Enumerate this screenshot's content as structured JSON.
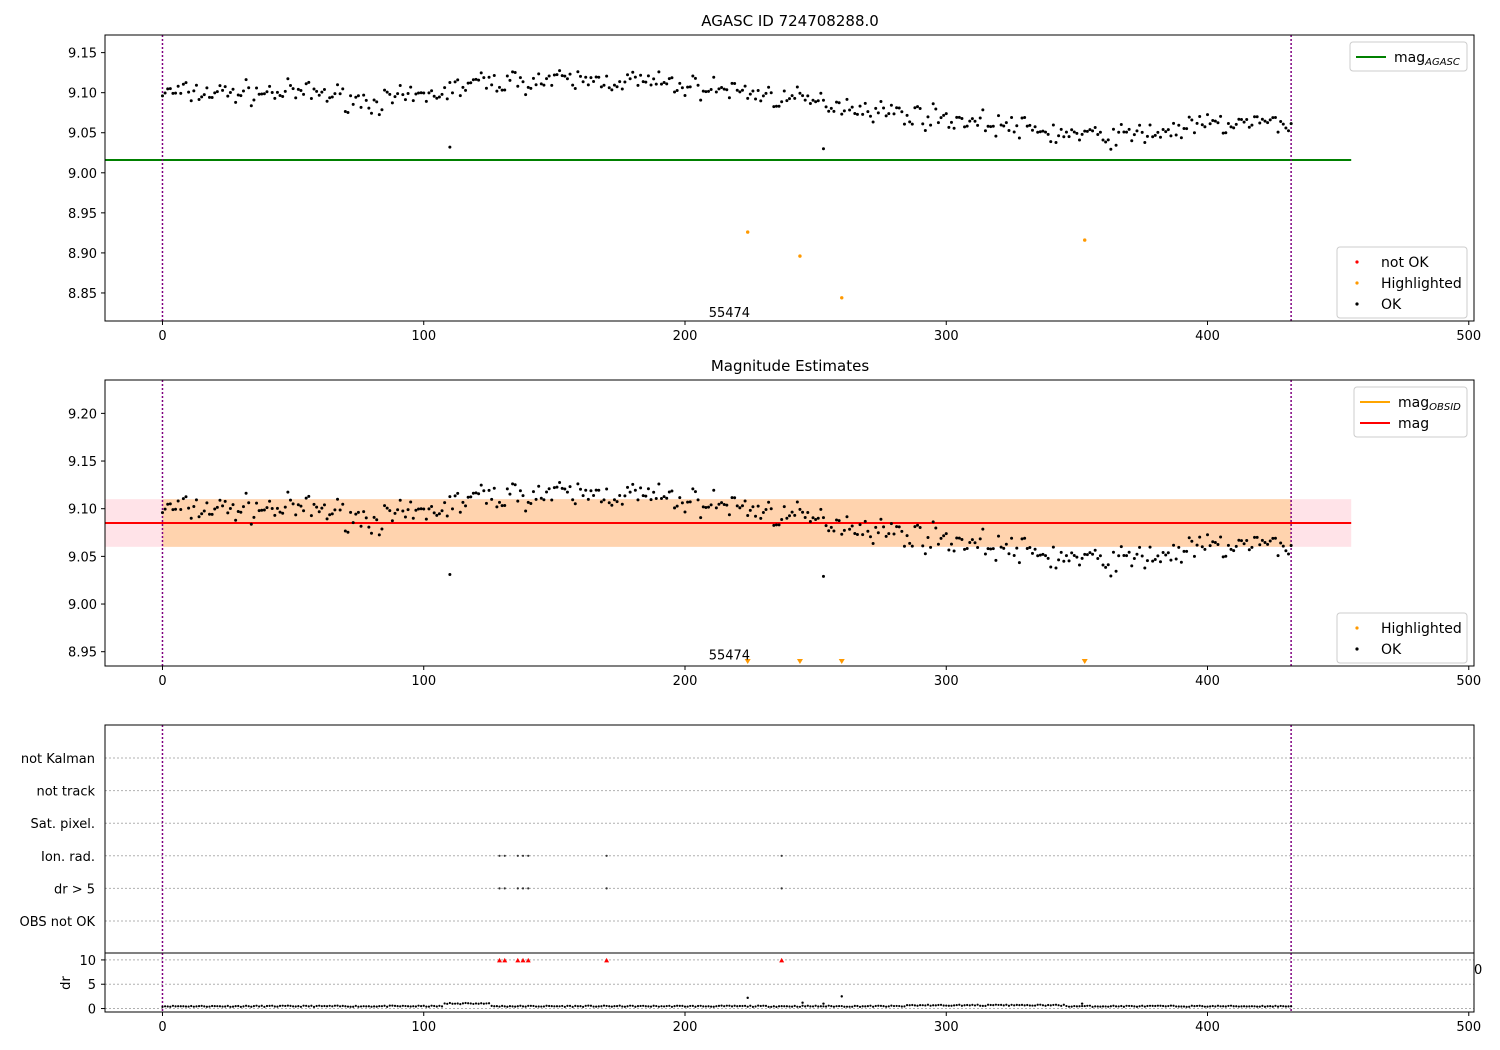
{
  "chart_data": [
    {
      "type": "scatter",
      "title": "AGASC ID 724708288.0",
      "xlim": [
        -22,
        502
      ],
      "ylim": [
        8.815,
        9.172
      ],
      "xticks": [
        0,
        100,
        200,
        300,
        400,
        500
      ],
      "xtick_labels": [
        "0",
        "100",
        "200",
        "300",
        "400",
        "500"
      ],
      "yticks": [
        8.85,
        8.9,
        8.95,
        9.0,
        9.05,
        9.1,
        9.15
      ],
      "ytick_labels": [
        "8.85",
        "8.90",
        "8.95",
        "9.00",
        "9.05",
        "9.10",
        "9.15"
      ],
      "annotation": {
        "text": "55474",
        "x": 217,
        "y": 8.826
      },
      "vlines": {
        "x": [
          0,
          432
        ],
        "color": "#7f007f",
        "style": "dotted"
      },
      "hlines": [
        {
          "y": 9.016,
          "x": [
            -22,
            455
          ],
          "color": "#008000",
          "name": "mag_AGASC"
        }
      ],
      "legend_upper": {
        "position": "top-right",
        "entries": [
          {
            "label": "mag",
            "sub": "AGASC",
            "color": "#008000",
            "kind": "line"
          }
        ]
      },
      "legend_lower": {
        "position": "lower-right",
        "entries": [
          {
            "label": "not OK",
            "color": "#ff0000",
            "kind": "dot"
          },
          {
            "label": "Highlighted",
            "color": "#ff9900",
            "kind": "dot"
          },
          {
            "label": "OK",
            "color": "#000000",
            "kind": "dot"
          }
        ]
      },
      "series": [
        {
          "name": "OK",
          "color": "#000000",
          "points": [
            [
              110,
              9.032
            ],
            [
              253,
              9.03
            ]
          ],
          "trend": [
            [
              0,
              9.1
            ],
            [
              30,
              9.1
            ],
            [
              60,
              9.1
            ],
            [
              80,
              9.088
            ],
            [
              100,
              9.095
            ],
            [
              120,
              9.112
            ],
            [
              140,
              9.115
            ],
            [
              160,
              9.115
            ],
            [
              180,
              9.115
            ],
            [
              200,
              9.108
            ],
            [
              220,
              9.103
            ],
            [
              240,
              9.092
            ],
            [
              260,
              9.085
            ],
            [
              280,
              9.075
            ],
            [
              300,
              9.068
            ],
            [
              320,
              9.06
            ],
            [
              340,
              9.05
            ],
            [
              360,
              9.045
            ],
            [
              380,
              9.05
            ],
            [
              400,
              9.06
            ],
            [
              420,
              9.062
            ],
            [
              432,
              9.062
            ]
          ]
        },
        {
          "name": "Highlighted",
          "color": "#ff9900",
          "points": [
            [
              224,
              8.926
            ],
            [
              244,
              8.896
            ],
            [
              260,
              8.844
            ],
            [
              353,
              8.916
            ]
          ]
        }
      ]
    },
    {
      "type": "scatter",
      "title": "Magnitude Estimates",
      "xlim": [
        -22,
        502
      ],
      "ylim": [
        8.935,
        9.235
      ],
      "xticks": [
        0,
        100,
        200,
        300,
        400,
        500
      ],
      "xtick_labels": [
        "0",
        "100",
        "200",
        "300",
        "400",
        "500"
      ],
      "yticks": [
        8.95,
        9.0,
        9.05,
        9.1,
        9.15,
        9.2
      ],
      "ytick_labels": [
        "8.95",
        "9.00",
        "9.05",
        "9.10",
        "9.15",
        "9.20"
      ],
      "annotation": {
        "text": "55474",
        "x": 217,
        "y": 8.947
      },
      "vlines": {
        "x": [
          0,
          432
        ],
        "color": "#7f007f",
        "style": "dotted"
      },
      "bands": [
        {
          "y": [
            9.06,
            9.11
          ],
          "x": [
            -22,
            455
          ],
          "color": "#ffc0cb",
          "opacity": 0.45
        },
        {
          "y": [
            9.06,
            9.11
          ],
          "x": [
            0,
            432
          ],
          "color": "#ffa500",
          "opacity": 0.25
        }
      ],
      "hlines": [
        {
          "y": 9.085,
          "x": [
            -22,
            455
          ],
          "color": "#ff0000",
          "name": "mag"
        }
      ],
      "legend_upper": {
        "position": "top-right",
        "entries": [
          {
            "label": "mag",
            "sub": "OBSID",
            "color": "#ffa500",
            "kind": "line"
          },
          {
            "label": "mag",
            "sub": "",
            "color": "#ff0000",
            "kind": "line"
          }
        ]
      },
      "legend_lower": {
        "position": "lower-right",
        "entries": [
          {
            "label": "Highlighted",
            "color": "#ff9900",
            "kind": "dot"
          },
          {
            "label": "OK",
            "color": "#000000",
            "kind": "dot"
          }
        ]
      },
      "series": [
        {
          "name": "OK",
          "color": "#000000",
          "points": [
            [
              110,
              9.031
            ],
            [
              253,
              9.029
            ]
          ],
          "same_as_panel": 0
        },
        {
          "name": "Highlighted (below axis)",
          "color": "#ff9900",
          "marker": "triangle-down",
          "points": [
            [
              224,
              8.937
            ],
            [
              244,
              8.937
            ],
            [
              260,
              8.937
            ],
            [
              353,
              8.937
            ]
          ]
        }
      ]
    },
    {
      "type": "scatter",
      "title": "",
      "xlim": [
        -22,
        502
      ],
      "xticks": [
        0,
        100,
        200,
        300,
        400,
        500
      ],
      "xtick_labels": [
        "0",
        "100",
        "200",
        "300",
        "400",
        "500"
      ],
      "vlines": {
        "x": [
          0,
          432
        ],
        "color": "#7f007f",
        "style": "dotted"
      },
      "flag_rows": [
        "not Kalman",
        "not track",
        "Sat. pixel.",
        "Ion. rad.",
        "dr > 5",
        "OBS not OK"
      ],
      "flags": {
        "Ion. rad.": [
          129,
          131,
          136,
          138,
          140,
          170,
          237
        ],
        "dr > 5": [
          129,
          131,
          136,
          138,
          140,
          170,
          237
        ]
      },
      "dr_axis": {
        "ylabel": "dr",
        "ylim": [
          -0.3,
          10.6
        ],
        "yticks": [
          0,
          5,
          10
        ],
        "ytick_labels": [
          "0",
          "5",
          "10"
        ],
        "right_edge_label": "0"
      },
      "dr_clipped": {
        "color": "#ff0000",
        "marker": "triangle-up",
        "x": [
          129,
          131,
          136,
          138,
          140,
          170,
          237
        ],
        "y": 10
      },
      "dr_points": [
        [
          224,
          2.2
        ],
        [
          245,
          1.2
        ],
        [
          253,
          1.0
        ],
        [
          260,
          2.5
        ],
        [
          352,
          1.0
        ]
      ]
    }
  ]
}
